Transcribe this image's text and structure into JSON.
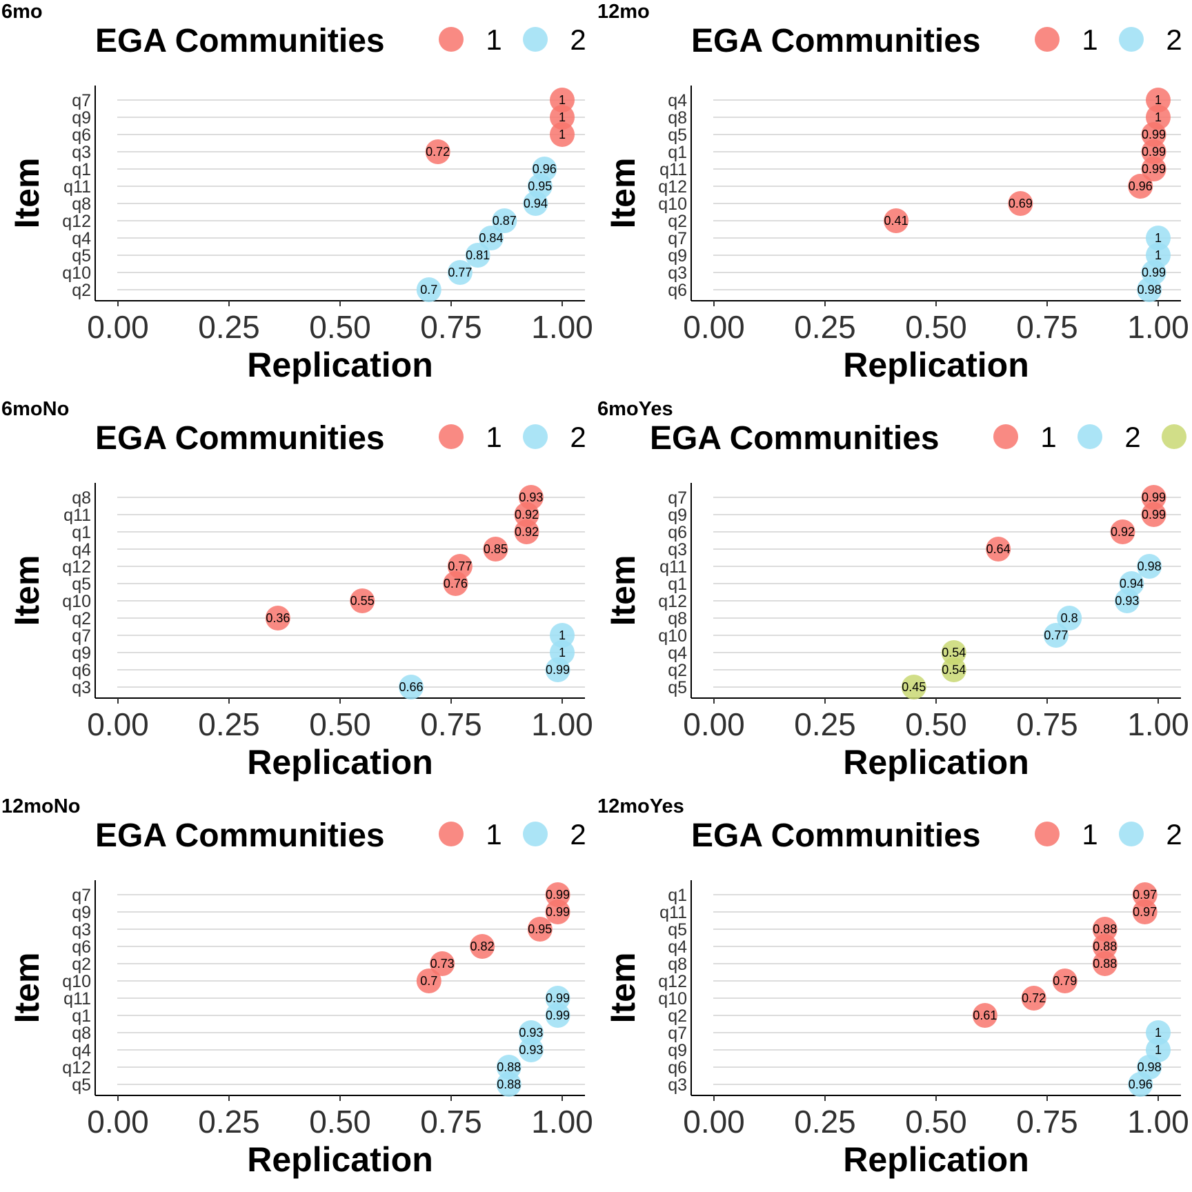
{
  "legend_title": "EGA Communities",
  "x_axis_title": "Replication",
  "y_axis_title": "Item",
  "x_ticks": [
    "0.00",
    "0.25",
    "0.50",
    "0.75",
    "1.00"
  ],
  "colors": {
    "1": "#F8766D",
    "2": "#9CDFF5",
    "3": "#C9D873"
  },
  "chart_data": [
    {
      "type": "scatter",
      "tag": "6mo",
      "xlabel": "Replication",
      "ylabel": "Item",
      "xlim": [
        0,
        1
      ],
      "legend": [
        {
          "community": "1",
          "label": "1"
        },
        {
          "community": "2",
          "label": "2"
        }
      ],
      "points": [
        {
          "item": "q7",
          "value": 1,
          "label": "1",
          "community": "1"
        },
        {
          "item": "q9",
          "value": 1,
          "label": "1",
          "community": "1"
        },
        {
          "item": "q6",
          "value": 1,
          "label": "1",
          "community": "1"
        },
        {
          "item": "q3",
          "value": 0.72,
          "label": "0.72",
          "community": "1"
        },
        {
          "item": "q1",
          "value": 0.96,
          "label": "0.96",
          "community": "2"
        },
        {
          "item": "q11",
          "value": 0.95,
          "label": "0.95",
          "community": "2"
        },
        {
          "item": "q8",
          "value": 0.94,
          "label": "0.94",
          "community": "2"
        },
        {
          "item": "q12",
          "value": 0.87,
          "label": "0.87",
          "community": "2"
        },
        {
          "item": "q4",
          "value": 0.84,
          "label": "0.84",
          "community": "2"
        },
        {
          "item": "q5",
          "value": 0.81,
          "label": "0.81",
          "community": "2"
        },
        {
          "item": "q10",
          "value": 0.77,
          "label": "0.77",
          "community": "2"
        },
        {
          "item": "q2",
          "value": 0.7,
          "label": "0.7",
          "community": "2"
        }
      ]
    },
    {
      "type": "scatter",
      "tag": "12mo",
      "xlabel": "Replication",
      "ylabel": "Item",
      "xlim": [
        0,
        1
      ],
      "legend": [
        {
          "community": "1",
          "label": "1"
        },
        {
          "community": "2",
          "label": "2"
        }
      ],
      "points": [
        {
          "item": "q4",
          "value": 1,
          "label": "1",
          "community": "1"
        },
        {
          "item": "q8",
          "value": 1,
          "label": "1",
          "community": "1"
        },
        {
          "item": "q5",
          "value": 0.99,
          "label": "0.99",
          "community": "1"
        },
        {
          "item": "q1",
          "value": 0.99,
          "label": "0.99",
          "community": "1"
        },
        {
          "item": "q11",
          "value": 0.99,
          "label": "0.99",
          "community": "1"
        },
        {
          "item": "q12",
          "value": 0.96,
          "label": "0.96",
          "community": "1"
        },
        {
          "item": "q10",
          "value": 0.69,
          "label": "0.69",
          "community": "1"
        },
        {
          "item": "q2",
          "value": 0.41,
          "label": "0.41",
          "community": "1"
        },
        {
          "item": "q7",
          "value": 1,
          "label": "1",
          "community": "2"
        },
        {
          "item": "q9",
          "value": 1,
          "label": "1",
          "community": "2"
        },
        {
          "item": "q3",
          "value": 0.99,
          "label": "0.99",
          "community": "2"
        },
        {
          "item": "q6",
          "value": 0.98,
          "label": "0.98",
          "community": "2"
        }
      ]
    },
    {
      "type": "scatter",
      "tag": "6moNo",
      "xlabel": "Replication",
      "ylabel": "Item",
      "xlim": [
        0,
        1
      ],
      "legend": [
        {
          "community": "1",
          "label": "1"
        },
        {
          "community": "2",
          "label": "2"
        }
      ],
      "points": [
        {
          "item": "q8",
          "value": 0.93,
          "label": "0.93",
          "community": "1"
        },
        {
          "item": "q11",
          "value": 0.92,
          "label": "0.92",
          "community": "1"
        },
        {
          "item": "q1",
          "value": 0.92,
          "label": "0.92",
          "community": "1"
        },
        {
          "item": "q4",
          "value": 0.85,
          "label": "0.85",
          "community": "1"
        },
        {
          "item": "q12",
          "value": 0.77,
          "label": "0.77",
          "community": "1"
        },
        {
          "item": "q5",
          "value": 0.76,
          "label": "0.76",
          "community": "1"
        },
        {
          "item": "q10",
          "value": 0.55,
          "label": "0.55",
          "community": "1"
        },
        {
          "item": "q2",
          "value": 0.36,
          "label": "0.36",
          "community": "1"
        },
        {
          "item": "q7",
          "value": 1,
          "label": "1",
          "community": "2"
        },
        {
          "item": "q9",
          "value": 1,
          "label": "1",
          "community": "2"
        },
        {
          "item": "q6",
          "value": 0.99,
          "label": "0.99",
          "community": "2"
        },
        {
          "item": "q3",
          "value": 0.66,
          "label": "0.66",
          "community": "2"
        }
      ]
    },
    {
      "type": "scatter",
      "tag": "6moYes",
      "xlabel": "Replication",
      "ylabel": "Item",
      "xlim": [
        0,
        1
      ],
      "legend": [
        {
          "community": "1",
          "label": "1"
        },
        {
          "community": "2",
          "label": "2"
        },
        {
          "community": "3",
          "label": ""
        }
      ],
      "points": [
        {
          "item": "q7",
          "value": 0.99,
          "label": "0.99",
          "community": "1"
        },
        {
          "item": "q9",
          "value": 0.99,
          "label": "0.99",
          "community": "1"
        },
        {
          "item": "q6",
          "value": 0.92,
          "label": "0.92",
          "community": "1"
        },
        {
          "item": "q3",
          "value": 0.64,
          "label": "0.64",
          "community": "1"
        },
        {
          "item": "q11",
          "value": 0.98,
          "label": "0.98",
          "community": "2"
        },
        {
          "item": "q1",
          "value": 0.94,
          "label": "0.94",
          "community": "2"
        },
        {
          "item": "q12",
          "value": 0.93,
          "label": "0.93",
          "community": "2"
        },
        {
          "item": "q8",
          "value": 0.8,
          "label": "0.8",
          "community": "2"
        },
        {
          "item": "q10",
          "value": 0.77,
          "label": "0.77",
          "community": "2"
        },
        {
          "item": "q4",
          "value": 0.54,
          "label": "0.54",
          "community": "3"
        },
        {
          "item": "q2",
          "value": 0.54,
          "label": "0.54",
          "community": "3"
        },
        {
          "item": "q5",
          "value": 0.45,
          "label": "0.45",
          "community": "3"
        }
      ]
    },
    {
      "type": "scatter",
      "tag": "12moNo",
      "xlabel": "Replication",
      "ylabel": "Item",
      "xlim": [
        0,
        1
      ],
      "legend": [
        {
          "community": "1",
          "label": "1"
        },
        {
          "community": "2",
          "label": "2"
        }
      ],
      "points": [
        {
          "item": "q7",
          "value": 0.99,
          "label": "0.99",
          "community": "1"
        },
        {
          "item": "q9",
          "value": 0.99,
          "label": "0.99",
          "community": "1"
        },
        {
          "item": "q3",
          "value": 0.95,
          "label": "0.95",
          "community": "1"
        },
        {
          "item": "q6",
          "value": 0.82,
          "label": "0.82",
          "community": "1"
        },
        {
          "item": "q2",
          "value": 0.73,
          "label": "0.73",
          "community": "1"
        },
        {
          "item": "q10",
          "value": 0.7,
          "label": "0.7",
          "community": "1"
        },
        {
          "item": "q11",
          "value": 0.99,
          "label": "0.99",
          "community": "2"
        },
        {
          "item": "q1",
          "value": 0.99,
          "label": "0.99",
          "community": "2"
        },
        {
          "item": "q8",
          "value": 0.93,
          "label": "0.93",
          "community": "2"
        },
        {
          "item": "q4",
          "value": 0.93,
          "label": "0.93",
          "community": "2"
        },
        {
          "item": "q12",
          "value": 0.88,
          "label": "0.88",
          "community": "2"
        },
        {
          "item": "q5",
          "value": 0.88,
          "label": "0.88",
          "community": "2"
        }
      ]
    },
    {
      "type": "scatter",
      "tag": "12moYes",
      "xlabel": "Replication",
      "ylabel": "Item",
      "xlim": [
        0,
        1
      ],
      "legend": [
        {
          "community": "1",
          "label": "1"
        },
        {
          "community": "2",
          "label": "2"
        }
      ],
      "points": [
        {
          "item": "q1",
          "value": 0.97,
          "label": "0.97",
          "community": "1"
        },
        {
          "item": "q11",
          "value": 0.97,
          "label": "0.97",
          "community": "1"
        },
        {
          "item": "q5",
          "value": 0.88,
          "label": "0.88",
          "community": "1"
        },
        {
          "item": "q4",
          "value": 0.88,
          "label": "0.88",
          "community": "1"
        },
        {
          "item": "q8",
          "value": 0.88,
          "label": "0.88",
          "community": "1"
        },
        {
          "item": "q12",
          "value": 0.79,
          "label": "0.79",
          "community": "1"
        },
        {
          "item": "q10",
          "value": 0.72,
          "label": "0.72",
          "community": "1"
        },
        {
          "item": "q2",
          "value": 0.61,
          "label": "0.61",
          "community": "1"
        },
        {
          "item": "q7",
          "value": 1,
          "label": "1",
          "community": "2"
        },
        {
          "item": "q9",
          "value": 1,
          "label": "1",
          "community": "2"
        },
        {
          "item": "q6",
          "value": 0.98,
          "label": "0.98",
          "community": "2"
        },
        {
          "item": "q3",
          "value": 0.96,
          "label": "0.96",
          "community": "2"
        }
      ]
    }
  ]
}
